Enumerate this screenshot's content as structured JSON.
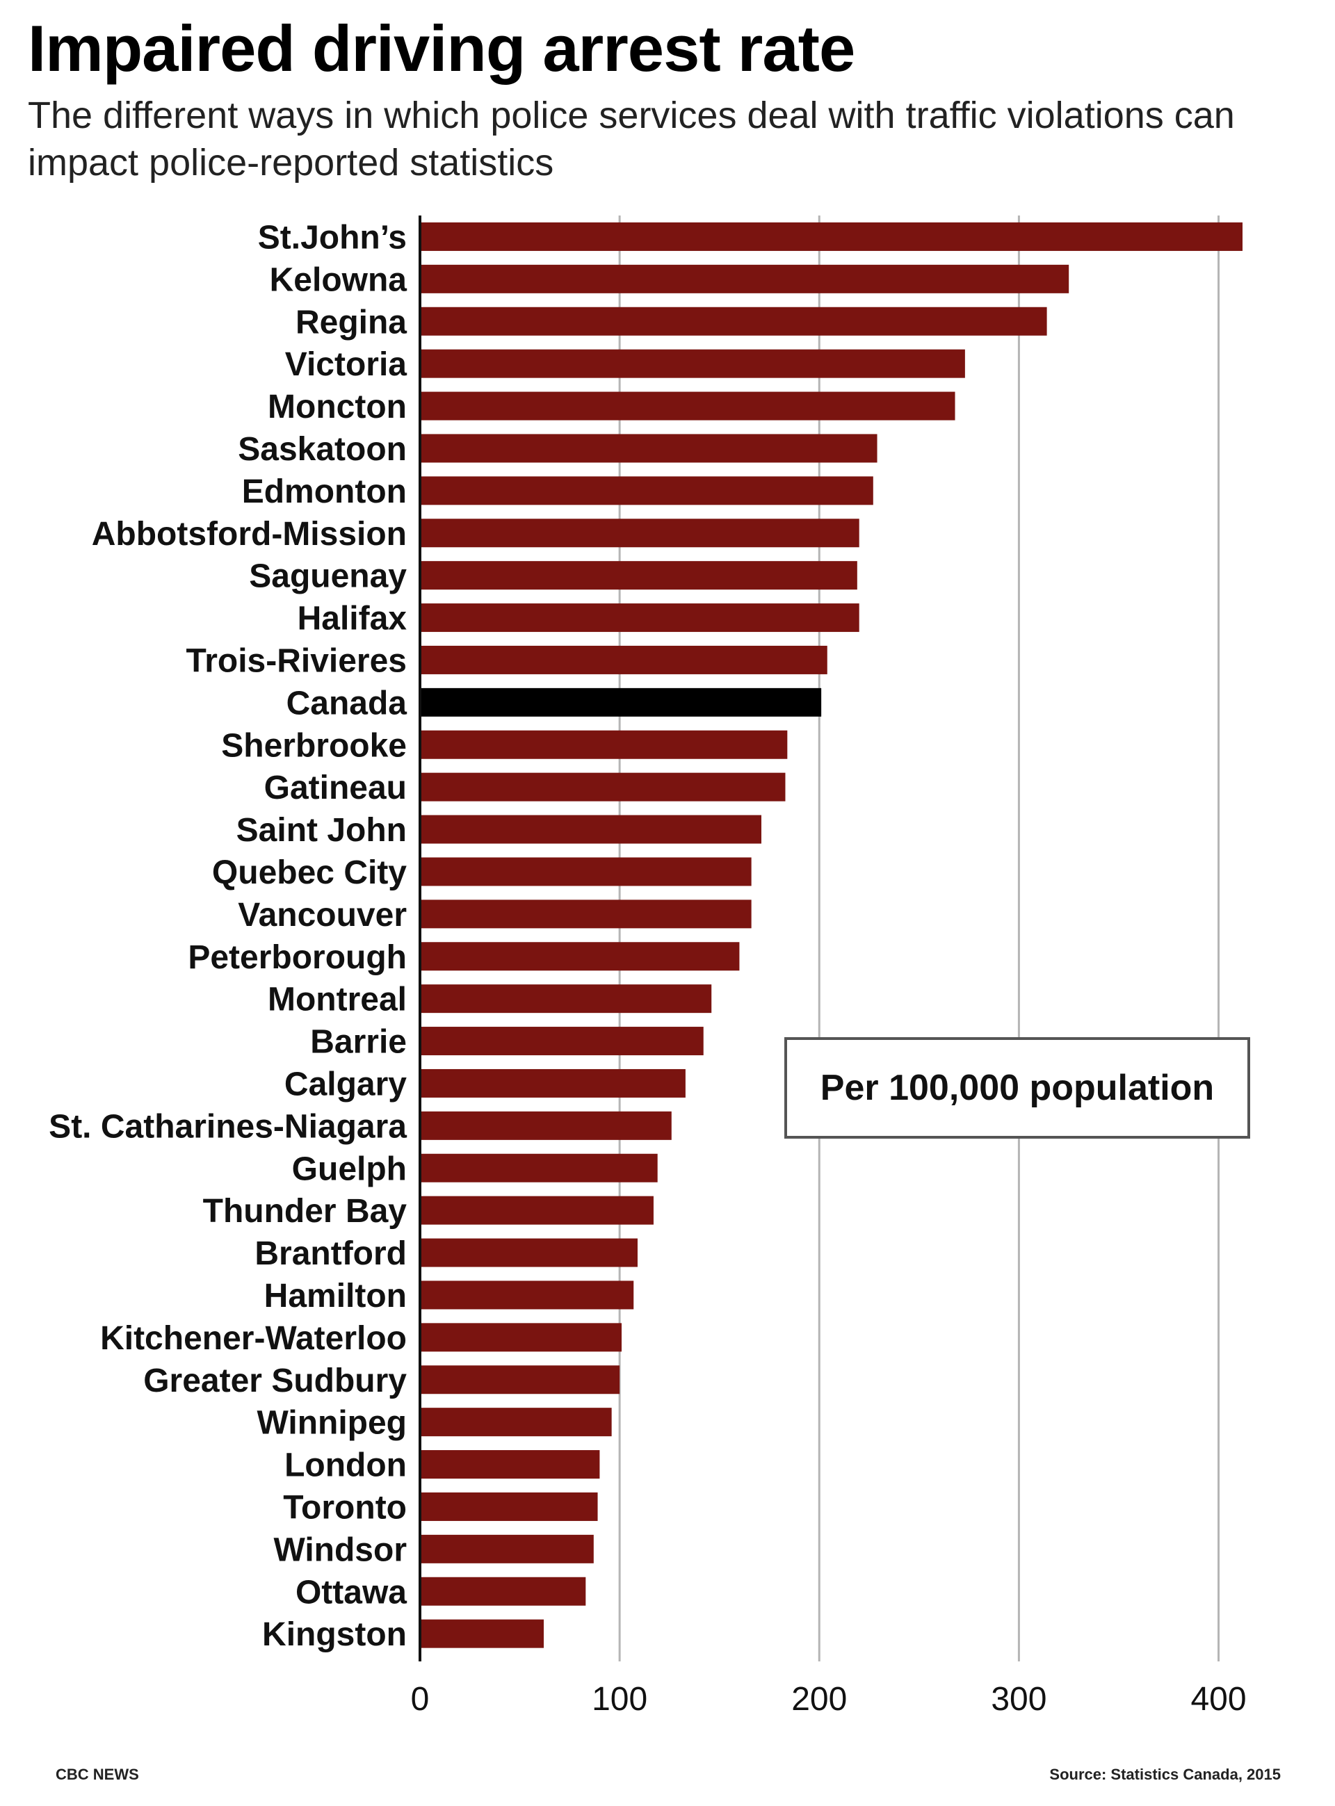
{
  "header": {
    "title": "Impaired driving arrest rate",
    "subtitle": "The different ways in which police services deal with traffic violations can impact police-reported statistics"
  },
  "footer": {
    "credit": "CBC NEWS",
    "source": "Source: Statistics Canada, 2015"
  },
  "chart_data": {
    "type": "bar",
    "orientation": "horizontal",
    "annotation": "Per 100,000 population",
    "categories": [
      "St.John’s",
      "Kelowna",
      "Regina",
      "Victoria",
      "Moncton",
      "Saskatoon",
      "Edmonton",
      "Abbotsford-Mission",
      "Saguenay",
      "Halifax",
      "Trois-Rivieres",
      "Canada",
      "Sherbrooke",
      "Gatineau",
      "Saint John",
      "Quebec City",
      "Vancouver",
      "Peterborough",
      "Montreal",
      "Barrie",
      "Calgary",
      "St. Catharines-Niagara",
      "Guelph",
      "Thunder Bay",
      "Brantford",
      "Hamilton",
      "Kitchener-Waterloo",
      "Greater Sudbury",
      "Winnipeg",
      "London",
      "Toronto",
      "Windsor",
      "Ottawa",
      "Kingston"
    ],
    "values": [
      412,
      325,
      314,
      273,
      268,
      229,
      227,
      220,
      219,
      220,
      204,
      201,
      184,
      183,
      171,
      166,
      166,
      160,
      146,
      142,
      133,
      126,
      119,
      117,
      109,
      107,
      101,
      100,
      96,
      90,
      89,
      87,
      83,
      62
    ],
    "highlight": "Canada",
    "xlim": [
      0,
      412
    ],
    "xticks": [
      0,
      100,
      200,
      300,
      400
    ],
    "grid": true,
    "colors": {
      "bar": "#7a1410",
      "highlight": "#000000",
      "grid": "#b5b5b5",
      "axis": "#111111"
    }
  }
}
